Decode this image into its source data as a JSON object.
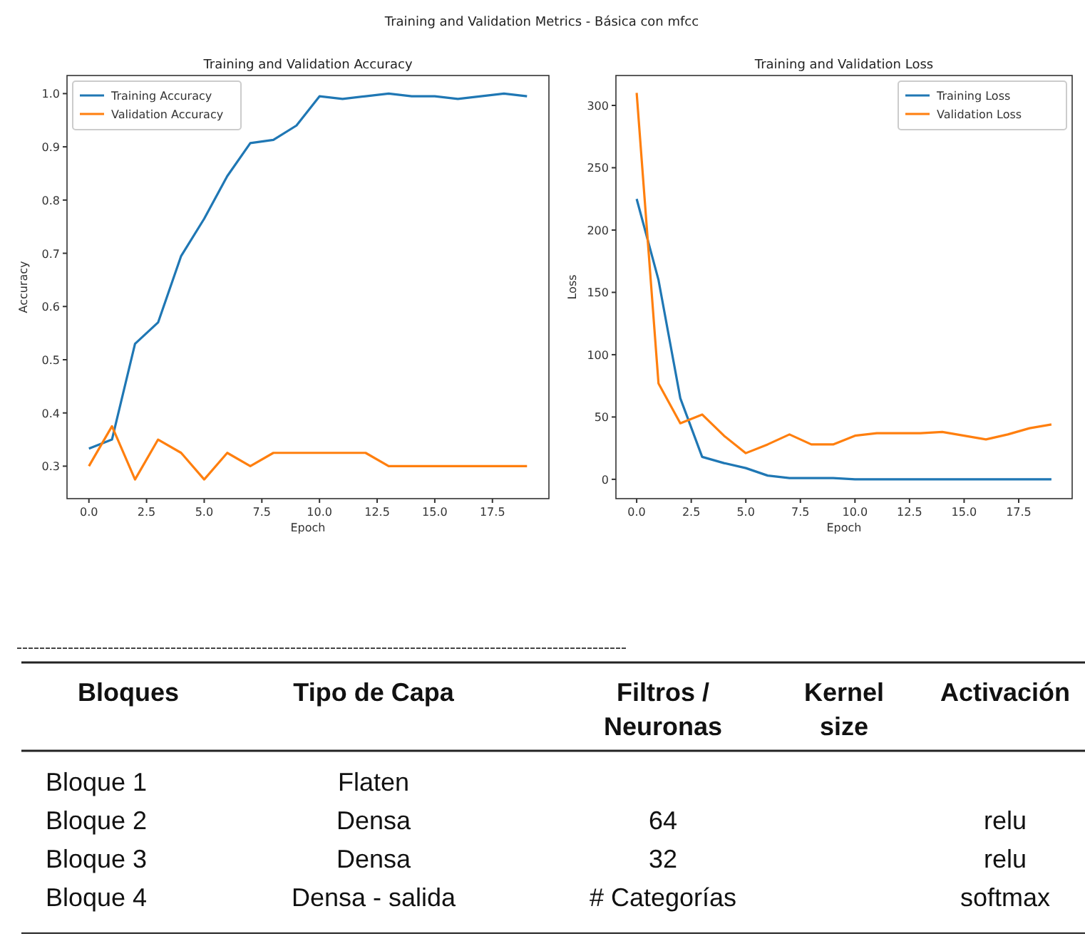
{
  "chart_data": [
    {
      "type": "line",
      "title": "Training and Validation Accuracy",
      "subtitle": "Training and Validation Metrics - Básica con mfcc",
      "xlabel": "Epoch",
      "ylabel": "Accuracy",
      "x": [
        0,
        1,
        2,
        3,
        4,
        5,
        6,
        7,
        8,
        9,
        10,
        11,
        12,
        13,
        14,
        15,
        16,
        17,
        18,
        19
      ],
      "xlim": [
        -0.95,
        19.95
      ],
      "xticks": [
        {
          "value": 0,
          "label": "0.0"
        },
        {
          "value": 2.5,
          "label": "2.5"
        },
        {
          "value": 5,
          "label": "5.0"
        },
        {
          "value": 7.5,
          "label": "7.5"
        },
        {
          "value": 10,
          "label": "10.0"
        },
        {
          "value": 12.5,
          "label": "12.5"
        },
        {
          "value": 15,
          "label": "15.0"
        },
        {
          "value": 17.5,
          "label": "17.5"
        }
      ],
      "ylim": [
        0.239,
        1.034
      ],
      "yticks": [
        0.3,
        0.4,
        0.5,
        0.6,
        0.7,
        0.8,
        0.9,
        {
          "value": 1,
          "label": "1.0"
        }
      ],
      "legend": "top left",
      "series": [
        {
          "name": "Training Accuracy",
          "color": "#1f77b4",
          "values": [
            0.333,
            0.35,
            0.53,
            0.57,
            0.695,
            0.765,
            0.845,
            0.907,
            0.913,
            0.94,
            0.995,
            0.99,
            0.995,
            1.0,
            0.995,
            0.995,
            0.99,
            0.995,
            1.0,
            0.995
          ]
        },
        {
          "name": "Validation Accuracy",
          "color": "#ff7f0e",
          "values": [
            0.3,
            0.375,
            0.275,
            0.35,
            0.325,
            0.275,
            0.325,
            0.3,
            0.325,
            0.325,
            0.325,
            0.325,
            0.325,
            0.3,
            0.3,
            0.3,
            0.3,
            0.3,
            0.3,
            0.3
          ]
        }
      ]
    },
    {
      "type": "line",
      "title": "Training and Validation Loss",
      "xlabel": "Epoch",
      "ylabel": "Loss",
      "x": [
        0,
        1,
        2,
        3,
        4,
        5,
        6,
        7,
        8,
        9,
        10,
        11,
        12,
        13,
        14,
        15,
        16,
        17,
        18,
        19
      ],
      "xlim": [
        -0.95,
        19.95
      ],
      "xticks": [
        {
          "value": 0,
          "label": "0.0"
        },
        {
          "value": 2.5,
          "label": "2.5"
        },
        {
          "value": 5,
          "label": "5.0"
        },
        {
          "value": 7.5,
          "label": "7.5"
        },
        {
          "value": 10,
          "label": "10.0"
        },
        {
          "value": 12.5,
          "label": "12.5"
        },
        {
          "value": 15,
          "label": "15.0"
        },
        {
          "value": 17.5,
          "label": "17.5"
        }
      ],
      "ylim": [
        -15.5,
        324
      ],
      "yticks": [
        0,
        50,
        100,
        150,
        200,
        250,
        300
      ],
      "legend": "top right",
      "series": [
        {
          "name": "Training Loss",
          "color": "#1f77b4",
          "values": [
            225,
            160,
            65,
            18,
            13,
            9,
            3,
            1,
            1,
            1,
            0,
            0,
            0,
            0,
            0,
            0,
            0,
            0,
            0,
            0
          ]
        },
        {
          "name": "Validation Loss",
          "color": "#ff7f0e",
          "values": [
            310,
            77,
            45,
            52,
            35,
            21,
            28,
            36,
            28,
            28,
            35,
            37,
            37,
            37,
            38,
            35,
            32,
            36,
            41,
            44
          ]
        }
      ]
    },
    {
      "type": "other",
      "categories": [
        "Bloques",
        "Tipo de Capa",
        "Filtros / Neuronas",
        "Kernel size",
        "Activación"
      ],
      "y_categories": [
        "Bloque 1",
        "Bloque 2",
        "Bloque 3",
        "Bloque 4"
      ],
      "annotations": [
        {
          "text": "Flaten",
          "x": "Tipo de Capa",
          "y": "Bloque 1"
        },
        {
          "text": "Densa",
          "x": "Tipo de Capa",
          "y": "Bloque 2"
        },
        {
          "text": "64",
          "x": "Filtros / Neuronas",
          "y": "Bloque 2"
        },
        {
          "text": "relu",
          "x": "Activación",
          "y": "Bloque 2"
        },
        {
          "text": "Densa",
          "x": "Tipo de Capa",
          "y": "Bloque 3"
        },
        {
          "text": "32",
          "x": "Filtros / Neuronas",
          "y": "Bloque 3"
        },
        {
          "text": "relu",
          "x": "Activación",
          "y": "Bloque 3"
        },
        {
          "text": "Densa - salida",
          "x": "Tipo de Capa",
          "y": "Bloque 4"
        },
        {
          "text": "# Categorías",
          "x": "Filtros / Neuronas",
          "y": "Bloque 4"
        },
        {
          "text": "softmax",
          "x": "Activación",
          "y": "Bloque 4"
        }
      ]
    }
  ]
}
